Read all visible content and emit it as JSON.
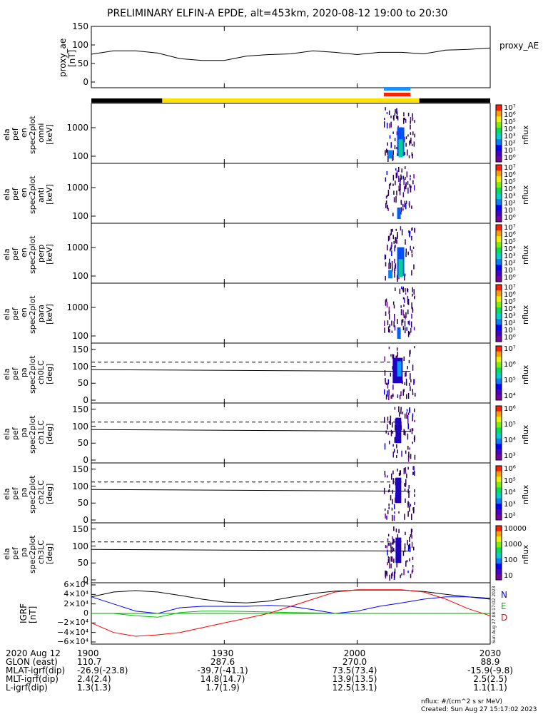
{
  "title": "PRELIMINARY ELFIN-A EPDE, alt=453km, 2020-08-12 19:00 to 20:30",
  "time_range": {
    "start": "19:00",
    "end": "20:30"
  },
  "ae_panel": {
    "ylabel_lines": [
      "proxy_ae",
      "[nT]"
    ],
    "legend": "proxy_AE",
    "yticks": [
      "150",
      "100",
      "50",
      "0"
    ],
    "ylim": [
      0,
      150
    ]
  },
  "status_bar": {
    "colors": [
      "#000000",
      "#ffe000",
      "#000000"
    ],
    "segments_time": [
      [
        "19:00",
        "19:16"
      ],
      [
        "19:16",
        "20:14"
      ],
      [
        "20:14",
        "20:30"
      ]
    ]
  },
  "markers": [
    {
      "color": "#1e90ff",
      "t_start": "20:06",
      "t_end": "20:12"
    },
    {
      "color": "#ff2000",
      "t_start": "20:06",
      "t_end": "20:12"
    }
  ],
  "spec_panels": [
    {
      "ylabel_lines": [
        "ela",
        "pef",
        "en",
        "spec2plot",
        "omni",
        "[keV]"
      ],
      "yticks": [
        "1000",
        "100"
      ],
      "cbar_labels": [
        "10⁷",
        "10⁶",
        "10⁵",
        "10⁴",
        "10³",
        "10²",
        "10¹",
        "10⁰"
      ],
      "cbar_title": "nflux"
    },
    {
      "ylabel_lines": [
        "ela",
        "pef",
        "en",
        "spec2plot",
        "anti",
        "[keV]"
      ],
      "yticks": [
        "1000",
        "100"
      ],
      "cbar_labels": [
        "10⁷",
        "10⁶",
        "10⁵",
        "10⁴",
        "10³",
        "10²",
        "10¹",
        "10⁰"
      ],
      "cbar_title": "nflux"
    },
    {
      "ylabel_lines": [
        "ela",
        "pef",
        "en",
        "spec2plot",
        "perp",
        "[keV]"
      ],
      "yticks": [
        "1000",
        "100"
      ],
      "cbar_labels": [
        "10⁷",
        "10⁶",
        "10⁵",
        "10⁴",
        "10³",
        "10²",
        "10¹",
        "10⁰"
      ],
      "cbar_title": "nflux"
    },
    {
      "ylabel_lines": [
        "ela",
        "pef",
        "en",
        "spec2plot",
        "para",
        "[keV]"
      ],
      "yticks": [
        "1000",
        "100"
      ],
      "cbar_labels": [
        "10⁷",
        "10⁶",
        "10⁵",
        "10⁴",
        "10³",
        "10²",
        "10¹",
        "10⁰"
      ],
      "cbar_title": "nflux"
    }
  ],
  "pa_panels": [
    {
      "ylabel_lines": [
        "ela",
        "pef",
        "pa",
        "spec2plot",
        "ch0LC",
        "[deg]"
      ],
      "yticks": [
        "150",
        "100",
        "50",
        "0"
      ],
      "cbar_labels": [
        "10⁷",
        "10⁶",
        "10⁵",
        "10⁴"
      ],
      "cbar_title": "nflux"
    },
    {
      "ylabel_lines": [
        "ela",
        "pef",
        "pa",
        "spec2plot",
        "ch1LC",
        "[deg]"
      ],
      "yticks": [
        "150",
        "100",
        "50",
        "0"
      ],
      "cbar_labels": [
        "10⁶",
        "10⁵",
        "10⁴",
        "10³"
      ],
      "cbar_title": "nflux"
    },
    {
      "ylabel_lines": [
        "ela",
        "pef",
        "pa",
        "spec2plot",
        "ch2LC",
        "[deg]"
      ],
      "yticks": [
        "150",
        "100",
        "50",
        "0"
      ],
      "cbar_labels": [
        "10⁶",
        "10⁵",
        "10⁴",
        "10³",
        "10²"
      ],
      "cbar_title": "nflux"
    },
    {
      "ylabel_lines": [
        "ela",
        "pef",
        "pa",
        "spec2plot",
        "ch3LC",
        "[deg]"
      ],
      "yticks": [
        "150",
        "100",
        "50",
        "0"
      ],
      "cbar_labels": [
        "10000",
        "1000",
        "100",
        "10"
      ],
      "cbar_title": "nflux"
    }
  ],
  "igrf_panel": {
    "ylabel_lines": [
      "IGRF",
      "[nT]"
    ],
    "yticks": [
      "6×10⁴",
      "4×10⁴",
      "2×10⁴",
      "0",
      "−2×10⁴",
      "−4×10⁴",
      "−6×10⁴"
    ],
    "legend": [
      {
        "label": "N",
        "color": "#0000ff"
      },
      {
        "label": "E",
        "color": "#00c000"
      },
      {
        "label": "D",
        "color": "#ff0000"
      }
    ],
    "side_stamp": "Sun Aug 27 08:17:02 2023"
  },
  "bottom_table": {
    "rows": [
      {
        "label": "2020 Aug 12",
        "values": [
          "1900",
          "1930",
          "2000",
          "2030"
        ]
      },
      {
        "label": "GLON (east)",
        "values": [
          "110.7",
          "287.6",
          "270.0",
          "88.9"
        ]
      },
      {
        "label": "MLAT-igrf(dip)",
        "values": [
          "-26.9(-23.8)",
          "-39.7(-41.1)",
          "73.5(73.4)",
          "-15.9(-9.8)"
        ]
      },
      {
        "label": "MLT-igrf(dip)",
        "values": [
          "2.4(2.4)",
          "14.8(14.7)",
          "13.9(13.5)",
          "2.5(2.5)"
        ]
      },
      {
        "label": "L-igrf(dip)",
        "values": [
          "1.3(1.3)",
          "1.7(1.9)",
          "12.5(13.1)",
          "1.1(1.1)"
        ]
      }
    ]
  },
  "footer": {
    "units": "nflux: #/(cm^2 s sr MeV)",
    "created": "Created: Sun Aug 27 15:17:02 2023"
  },
  "chart_data": {
    "type": "line",
    "title": "PRELIMINARY ELFIN-A EPDE, alt=453km, 2020-08-12 19:00 to 20:30",
    "x": [
      "19:00",
      "19:05",
      "19:10",
      "19:15",
      "19:20",
      "19:25",
      "19:30",
      "19:35",
      "19:40",
      "19:45",
      "19:50",
      "19:55",
      "20:00",
      "20:05",
      "20:10",
      "20:15",
      "20:20",
      "20:25",
      "20:30"
    ],
    "series": [
      {
        "name": "proxy_AE",
        "values": [
          75,
          84,
          84,
          78,
          63,
          58,
          58,
          70,
          74,
          76,
          84,
          80,
          74,
          80,
          80,
          76,
          86,
          88,
          92
        ]
      },
      {
        "name": "N",
        "values": [
          35000,
          20000,
          5000,
          0,
          12000,
          15000,
          15000,
          15000,
          17000,
          15000,
          8000,
          0,
          5000,
          15000,
          22000,
          30000,
          35000,
          35000,
          30000
        ]
      },
      {
        "name": "E",
        "values": [
          0,
          0,
          -5000,
          -8000,
          2000,
          5000,
          5000,
          4000,
          3000,
          2000,
          1000,
          0,
          0,
          0,
          0,
          0,
          0,
          0,
          0
        ]
      },
      {
        "name": "D",
        "values": [
          -20000,
          -40000,
          -48000,
          -45000,
          -40000,
          -30000,
          -20000,
          -10000,
          0,
          15000,
          30000,
          45000,
          50000,
          50000,
          50000,
          45000,
          30000,
          10000,
          -5000
        ]
      }
    ],
    "ylim_ae": [
      0,
      150
    ],
    "ylim_igrf": [
      -60000,
      60000
    ]
  }
}
